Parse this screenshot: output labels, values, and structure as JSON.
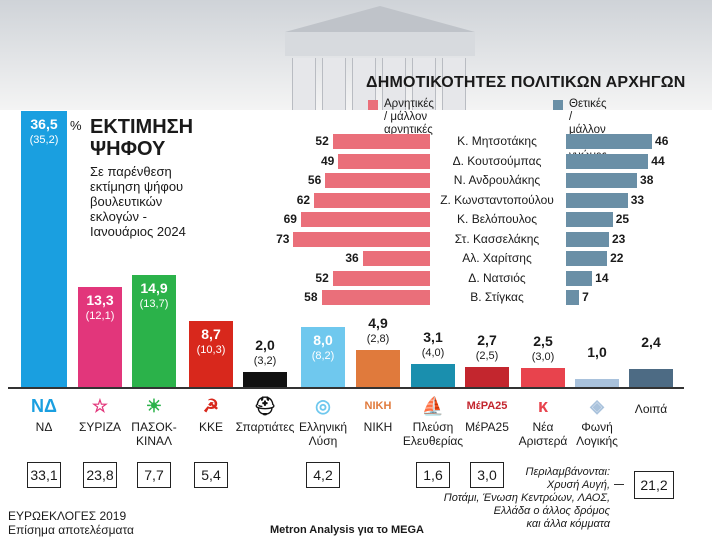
{
  "chart_data": [
    {
      "type": "bar",
      "title": "ΕΚΤΙΜΗΣΗ ΨΗΦΟΥ",
      "subtitle": "Σε παρένθεση εκτίμηση ψήφου βουλευτικών εκλογών - Ιανουάριος 2024",
      "unit": "%",
      "categories": [
        "ΝΔ",
        "ΣΥΡΙΖΑ",
        "ΠΑΣΟΚ-ΚΙΝΑΛ",
        "ΚΚΕ",
        "Σπαρτιάτες",
        "Ελληνική Λύση",
        "ΝΙΚΗ",
        "Πλεύση Ελευθερίας",
        "ΜέΡΑ25",
        "Νέα Αριστερά",
        "Φωνή Λογικής",
        "Λοιπά"
      ],
      "values": [
        36.5,
        13.3,
        14.9,
        8.7,
        2.0,
        8.0,
        4.9,
        3.1,
        2.7,
        2.5,
        1.0,
        2.4
      ],
      "value_labels": [
        "36,5",
        "13,3",
        "14,9",
        "8,7",
        "2,0",
        "8,0",
        "4,9",
        "3,1",
        "2,7",
        "2,5",
        "1,0",
        "2,4"
      ],
      "previous_labels": [
        "(35,2)",
        "(12,1)",
        "(13,7)",
        "(10,3)",
        "(3,2)",
        "(8,2)",
        "(2,8)",
        "(4,0)",
        "(2,5)",
        "(3,0)",
        "",
        ""
      ],
      "colors": [
        "#1a9fe0",
        "#e2367b",
        "#2bb24a",
        "#d8281c",
        "#111111",
        "#6fc8ee",
        "#e07a3c",
        "#1a8fae",
        "#c3262e",
        "#e8434d",
        "#a9c2dc",
        "#4d6b84"
      ]
    },
    {
      "type": "bar",
      "title": "ΔΗΜΟΤΙΚΟΤΗΤΕΣ ΠΟΛΙΤΙΚΩΝ ΑΡΧΗΓΩΝ",
      "categories": [
        "Κ. Μητσοτάκης",
        "Δ. Κουτσούμπας",
        "Ν. Ανδρουλάκης",
        "Ζ. Κωνσταντοπούλου",
        "Κ. Βελόπουλος",
        "Στ. Κασσελάκης",
        "Αλ. Χαρίτσης",
        "Δ. Νατσιός",
        "Β. Στίγκας"
      ],
      "series": [
        {
          "name": "Αρνητικές / μάλλον αρνητικές γνώμες",
          "values": [
            52,
            49,
            56,
            62,
            69,
            73,
            36,
            52,
            58
          ],
          "color": "#ea6f7a"
        },
        {
          "name": "Θετικές / μάλλον θετικές γνώμες",
          "values": [
            46,
            44,
            38,
            33,
            25,
            23,
            22,
            14,
            7
          ],
          "color": "#6a8fa6"
        }
      ]
    }
  ],
  "legend": {
    "neg_line1": "Αρνητικές / μάλλον",
    "neg_line2": "αρνητικές γνώμες",
    "pos_line1": "Θετικές / μάλλον",
    "pos_line2": "θετικές γνώμες"
  },
  "percent_sign": "%",
  "title_line1": "ΕΚΤΙΜΗΣΗ",
  "title_line2": "ΨΗΦΟΥ",
  "note_lines": [
    "Σε παρένθεση",
    "εκτίμηση ψήφου",
    "βουλευτικών",
    "εκλογών -",
    "Ιανουάριος 2024"
  ],
  "parties": [
    {
      "line1": "ΝΔ",
      "line2": "",
      "logo": "ΝΔ",
      "euro": "33,1"
    },
    {
      "line1": "ΣΥΡΙΖΑ",
      "line2": "",
      "logo": "☆",
      "euro": "23,8"
    },
    {
      "line1": "ΠΑΣΟΚ-",
      "line2": "ΚΙΝΑΛ",
      "logo": "☀",
      "euro": "7,7"
    },
    {
      "line1": "ΚΚΕ",
      "line2": "",
      "logo": "☭",
      "euro": "5,4"
    },
    {
      "line1": "Σπαρτιάτες",
      "line2": "",
      "logo": "⛑",
      "euro": ""
    },
    {
      "line1": "Ελληνική",
      "line2": "Λύση",
      "logo": "◎",
      "euro": "4,2"
    },
    {
      "line1": "ΝΙΚΗ",
      "line2": "",
      "logo": "ΝΙΚΗ",
      "euro": ""
    },
    {
      "line1": "Πλεύση",
      "line2": "Ελευθερίας",
      "logo": "⛵",
      "euro": "1,6"
    },
    {
      "line1": "ΜέΡΑ25",
      "line2": "",
      "logo": "ΜέΡΑ25",
      "euro": "3,0"
    },
    {
      "line1": "Νέα",
      "line2": "Αριστερά",
      "logo": "κ",
      "euro": ""
    },
    {
      "line1": "Φωνή",
      "line2": "Λογικής",
      "logo": "◈",
      "euro": ""
    },
    {
      "line1": "Λοιπά",
      "line2": "",
      "logo": "",
      "euro": "21,2"
    }
  ],
  "euro_label_line1": "ΕΥΡΩΕΚΛΟΓΕΣ 2019",
  "euro_label_line2": "Επίσημα αποτελέσματα",
  "source": "Metron Analysis για το MEGA",
  "others_note": [
    "Περιλαμβάνονται:",
    "Χρυσή Αυγή,",
    "Ποτάμι, Ένωση Κεντρώων, ΛΑΟΣ,",
    "Ελλάδα ο άλλος δρόμος",
    "και άλλα κόμματα"
  ]
}
